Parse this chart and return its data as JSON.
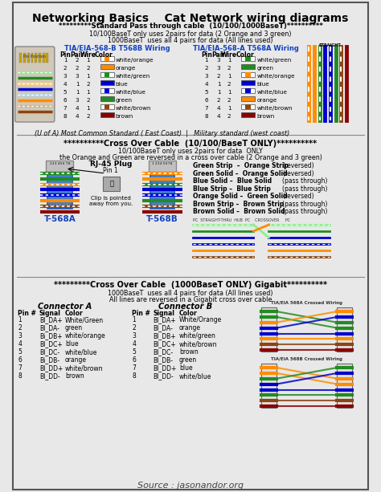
{
  "title": "Networking Basics    Cat Network wiring diagrams",
  "bg_color": "#e8e8e8",
  "section1_title": "*********Standard Pass through cable  (10/100/1000BaseT)**********",
  "section1_sub1": "10/100BaseT only uses 2pairs for data (2 Orange and 3 green)",
  "section1_sub2": "1000BaseT  uses all 4 pairs for data (All lines used)",
  "t568b_title": "TIA/EIA-568-B T568B Wiring",
  "t568a_title": "TIA/EIA-568-A T568A Wiring",
  "t568b_headers": [
    "Pin",
    "Pair",
    "Wire",
    "Color"
  ],
  "t568b_rows": [
    [
      1,
      2,
      1,
      "white/orange",
      "#FF8C00",
      true
    ],
    [
      2,
      2,
      2,
      "orange",
      "#FF8C00",
      false
    ],
    [
      3,
      3,
      1,
      "white/green",
      "#228B22",
      true
    ],
    [
      4,
      1,
      2,
      "blue",
      "#0000CD",
      false
    ],
    [
      5,
      1,
      1,
      "white/blue",
      "#0000CD",
      true
    ],
    [
      6,
      3,
      2,
      "green",
      "#228B22",
      false
    ],
    [
      7,
      4,
      1,
      "white/brown",
      "#8B4513",
      true
    ],
    [
      8,
      4,
      2,
      "brown",
      "#8B0000",
      false
    ]
  ],
  "t568a_rows": [
    [
      1,
      3,
      1,
      "white/green",
      "#228B22",
      true
    ],
    [
      2,
      3,
      2,
      "green",
      "#228B22",
      false
    ],
    [
      3,
      2,
      1,
      "white/orange",
      "#FF8C00",
      true
    ],
    [
      4,
      1,
      2,
      "blue",
      "#0000CD",
      false
    ],
    [
      5,
      1,
      1,
      "white/blue",
      "#0000CD",
      true
    ],
    [
      6,
      2,
      2,
      "orange",
      "#FF8C00",
      false
    ],
    [
      7,
      4,
      1,
      "white/brown",
      "#8B4513",
      true
    ],
    [
      8,
      4,
      2,
      "brown",
      "#8B0000",
      false
    ]
  ],
  "footer1": "(U of A) Most Common Standard ( East Coast)  |   Military standard (west coast)",
  "section2_title": "**********Cross Over Cable  (10/100/BaseT ONLY)**********",
  "section2_sub1": "10/100BaseT only uses 2pairs for data  ONLY",
  "section2_sub2": "the Orange and Green are reversed in a cross over cable (2 Orange and 3 green)",
  "crossover_notes": [
    [
      "Green Strip  –  Orange Strip",
      "(reversed)"
    ],
    [
      "Green Solid –  Orange Solid",
      "(reversed)"
    ],
    [
      "Blue Solid –  Blue Solid",
      "(pass through)"
    ],
    [
      "Blue Strip –  Blue Strip",
      "(pass through)"
    ],
    [
      "Orange Solid –  Green Solid",
      "(reversed)"
    ],
    [
      "Brown Strip –  Brown Strip",
      "(pass through)"
    ],
    [
      "Brown Solid –  Brown Solid",
      "(pass through)"
    ]
  ],
  "t568a_label": "T-568A",
  "t568b_label": "T-568B",
  "rj45_label": "RJ-45 Plug",
  "pin1_label": "Pin 1",
  "clip_label": "Clip is pointed\naway from you.",
  "section3_title": "*********Cross Over Cable  (1000BaseT ONLY) Gigabit**********",
  "section3_sub1": "1000BaseT  uses all 4 pairs for data (All lines used)",
  "section3_sub2": "All lines are reversed in a Gigabit cross over cable",
  "connA_title": "Connector A",
  "connB_title": "Connector B",
  "connA_headers": [
    "Pin #",
    "Signal",
    "Color"
  ],
  "connB_headers": [
    "Pin #",
    "Signal",
    "Color"
  ],
  "connA_rows": [
    [
      1,
      "BI_DA+",
      "White/Green"
    ],
    [
      2,
      "BI_DA-",
      "green"
    ],
    [
      3,
      "Bi_DB+",
      "white/orange"
    ],
    [
      4,
      "BI_DC+",
      "blue"
    ],
    [
      5,
      "BI_DC-",
      "white/blue"
    ],
    [
      6,
      "Bi_DB-",
      "orange"
    ],
    [
      7,
      "BI_DD+",
      "white/brown"
    ],
    [
      8,
      "BI_DD-",
      "brown"
    ]
  ],
  "connB_rows": [
    [
      1,
      "BI_DA+",
      "White/Orange"
    ],
    [
      2,
      "BI_DA-",
      "orange"
    ],
    [
      3,
      "BI_DB+",
      "white/green"
    ],
    [
      4,
      "BI_DC+",
      "white/brown"
    ],
    [
      5,
      "BI_DC-",
      "brown"
    ],
    [
      6,
      "BI_DB-",
      "green"
    ],
    [
      7,
      "BI_DD+",
      "blue"
    ],
    [
      8,
      "BI_DD-",
      "white/blue"
    ]
  ],
  "source_text": "Source : jasonandor.org",
  "wire_colors_568a": [
    "#90EE90",
    "#228B22",
    "#FFD080",
    "#0000CD",
    "#ADD8E6",
    "#FF8C00",
    "#D2B48C",
    "#8B4513"
  ],
  "wire_whites_568a": [
    true,
    false,
    true,
    false,
    true,
    false,
    true,
    false
  ],
  "wire_colors_568b": [
    "#FFD080",
    "#FF8C00",
    "#90EE90",
    "#0000CD",
    "#ADD8E6",
    "#228B22",
    "#D2B48C",
    "#8B4513"
  ],
  "wire_whites_568b": [
    true,
    false,
    true,
    false,
    true,
    false,
    true,
    false
  ]
}
